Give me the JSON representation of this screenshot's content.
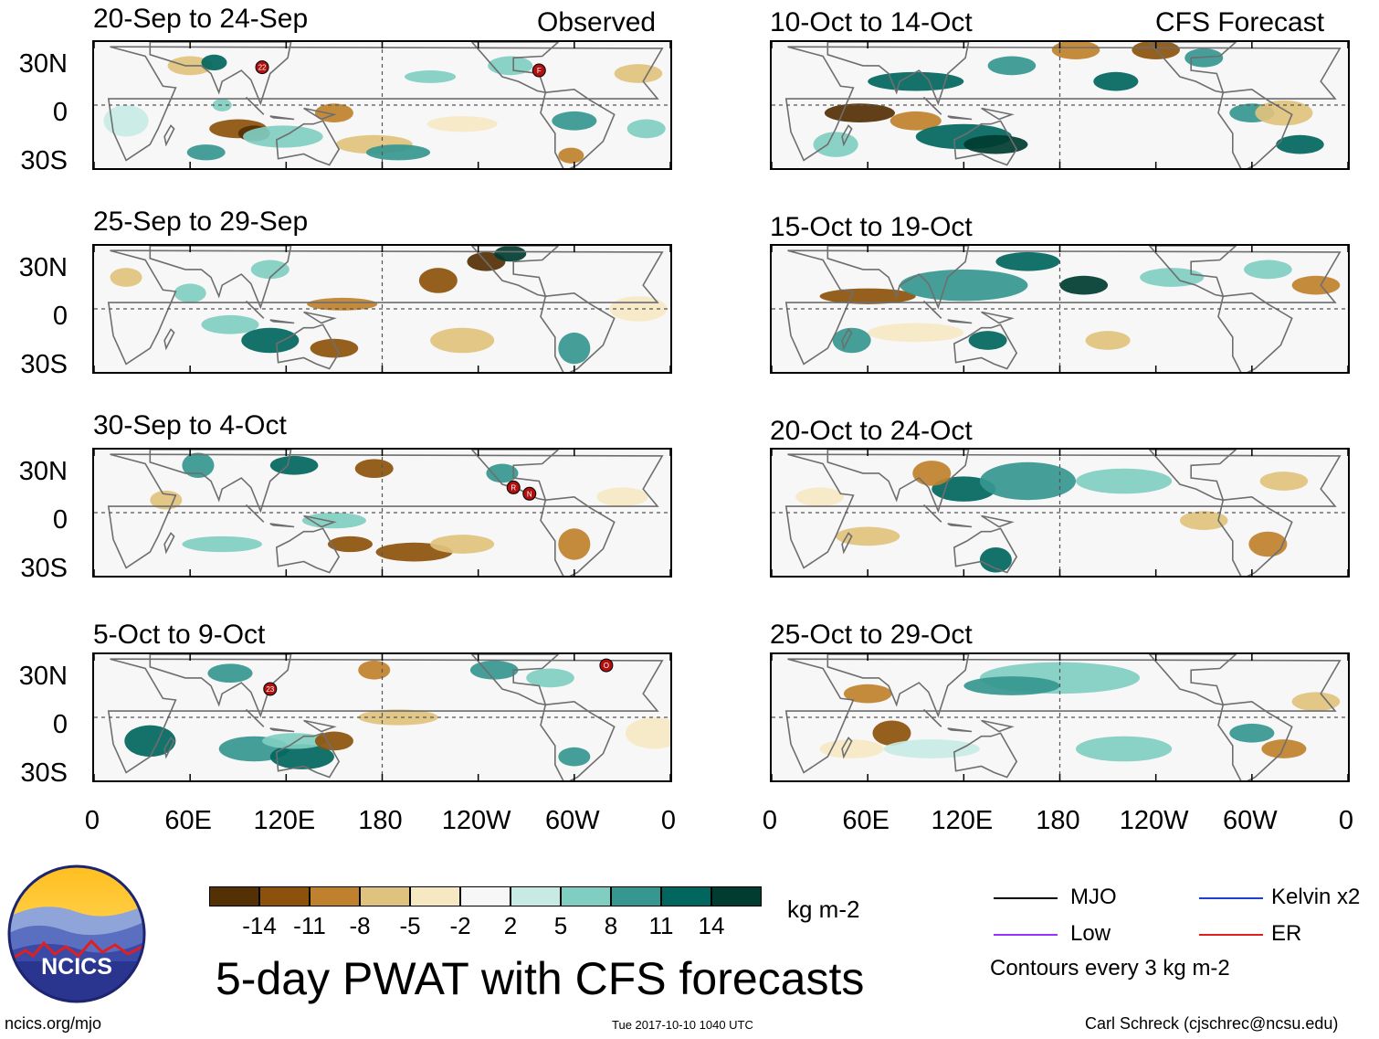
{
  "panels": {
    "observed": [
      {
        "title": "20-Sep to 24-Sep",
        "right_label": "Observed"
      },
      {
        "title": "25-Sep to 29-Sep",
        "right_label": ""
      },
      {
        "title": "30-Sep to 4-Oct",
        "right_label": ""
      },
      {
        "title": "5-Oct to 9-Oct",
        "right_label": ""
      }
    ],
    "forecast": [
      {
        "title": "10-Oct to 14-Oct",
        "right_label": "CFS Forecast"
      },
      {
        "title": "15-Oct to 19-Oct",
        "right_label": ""
      },
      {
        "title": "20-Oct to 24-Oct",
        "right_label": ""
      },
      {
        "title": "25-Oct to 29-Oct",
        "right_label": ""
      }
    ]
  },
  "storm_markers": [
    "22",
    "F",
    "R",
    "N",
    "23",
    "O"
  ],
  "lat_ticks": [
    "30N",
    "0",
    "30S"
  ],
  "lon_ticks": [
    "0",
    "60E",
    "120E",
    "180",
    "120W",
    "60W",
    "0"
  ],
  "colorbar": {
    "labels": [
      "-14",
      "-11",
      "-8",
      "-5",
      "-2",
      "2",
      "5",
      "8",
      "11",
      "14"
    ],
    "colors": [
      "#543005",
      "#8c510a",
      "#bf812d",
      "#dfc27d",
      "#f6e8c3",
      "#f7f7f7",
      "#c7eae5",
      "#80cdc1",
      "#35978f",
      "#01665e",
      "#003c30"
    ],
    "units": "kg m-2"
  },
  "legend": {
    "mjo": "MJO",
    "low": "Low",
    "kelvin": "Kelvin x2",
    "er": "ER",
    "mjo_color": "#000000",
    "low_color": "#9933ff",
    "kelvin_color": "#1f3fd0",
    "er_color": "#e02020",
    "contours": "Contours every 3 kg m-2"
  },
  "logo_text": "NCICS",
  "main_title": "5-day PWAT with CFS forecasts",
  "footer": {
    "url": "ncics.org/mjo",
    "timestamp": "Tue 2017-10-10 1040 UTC",
    "author": "Carl Schreck (cjschrec@ncsu.edu)"
  }
}
